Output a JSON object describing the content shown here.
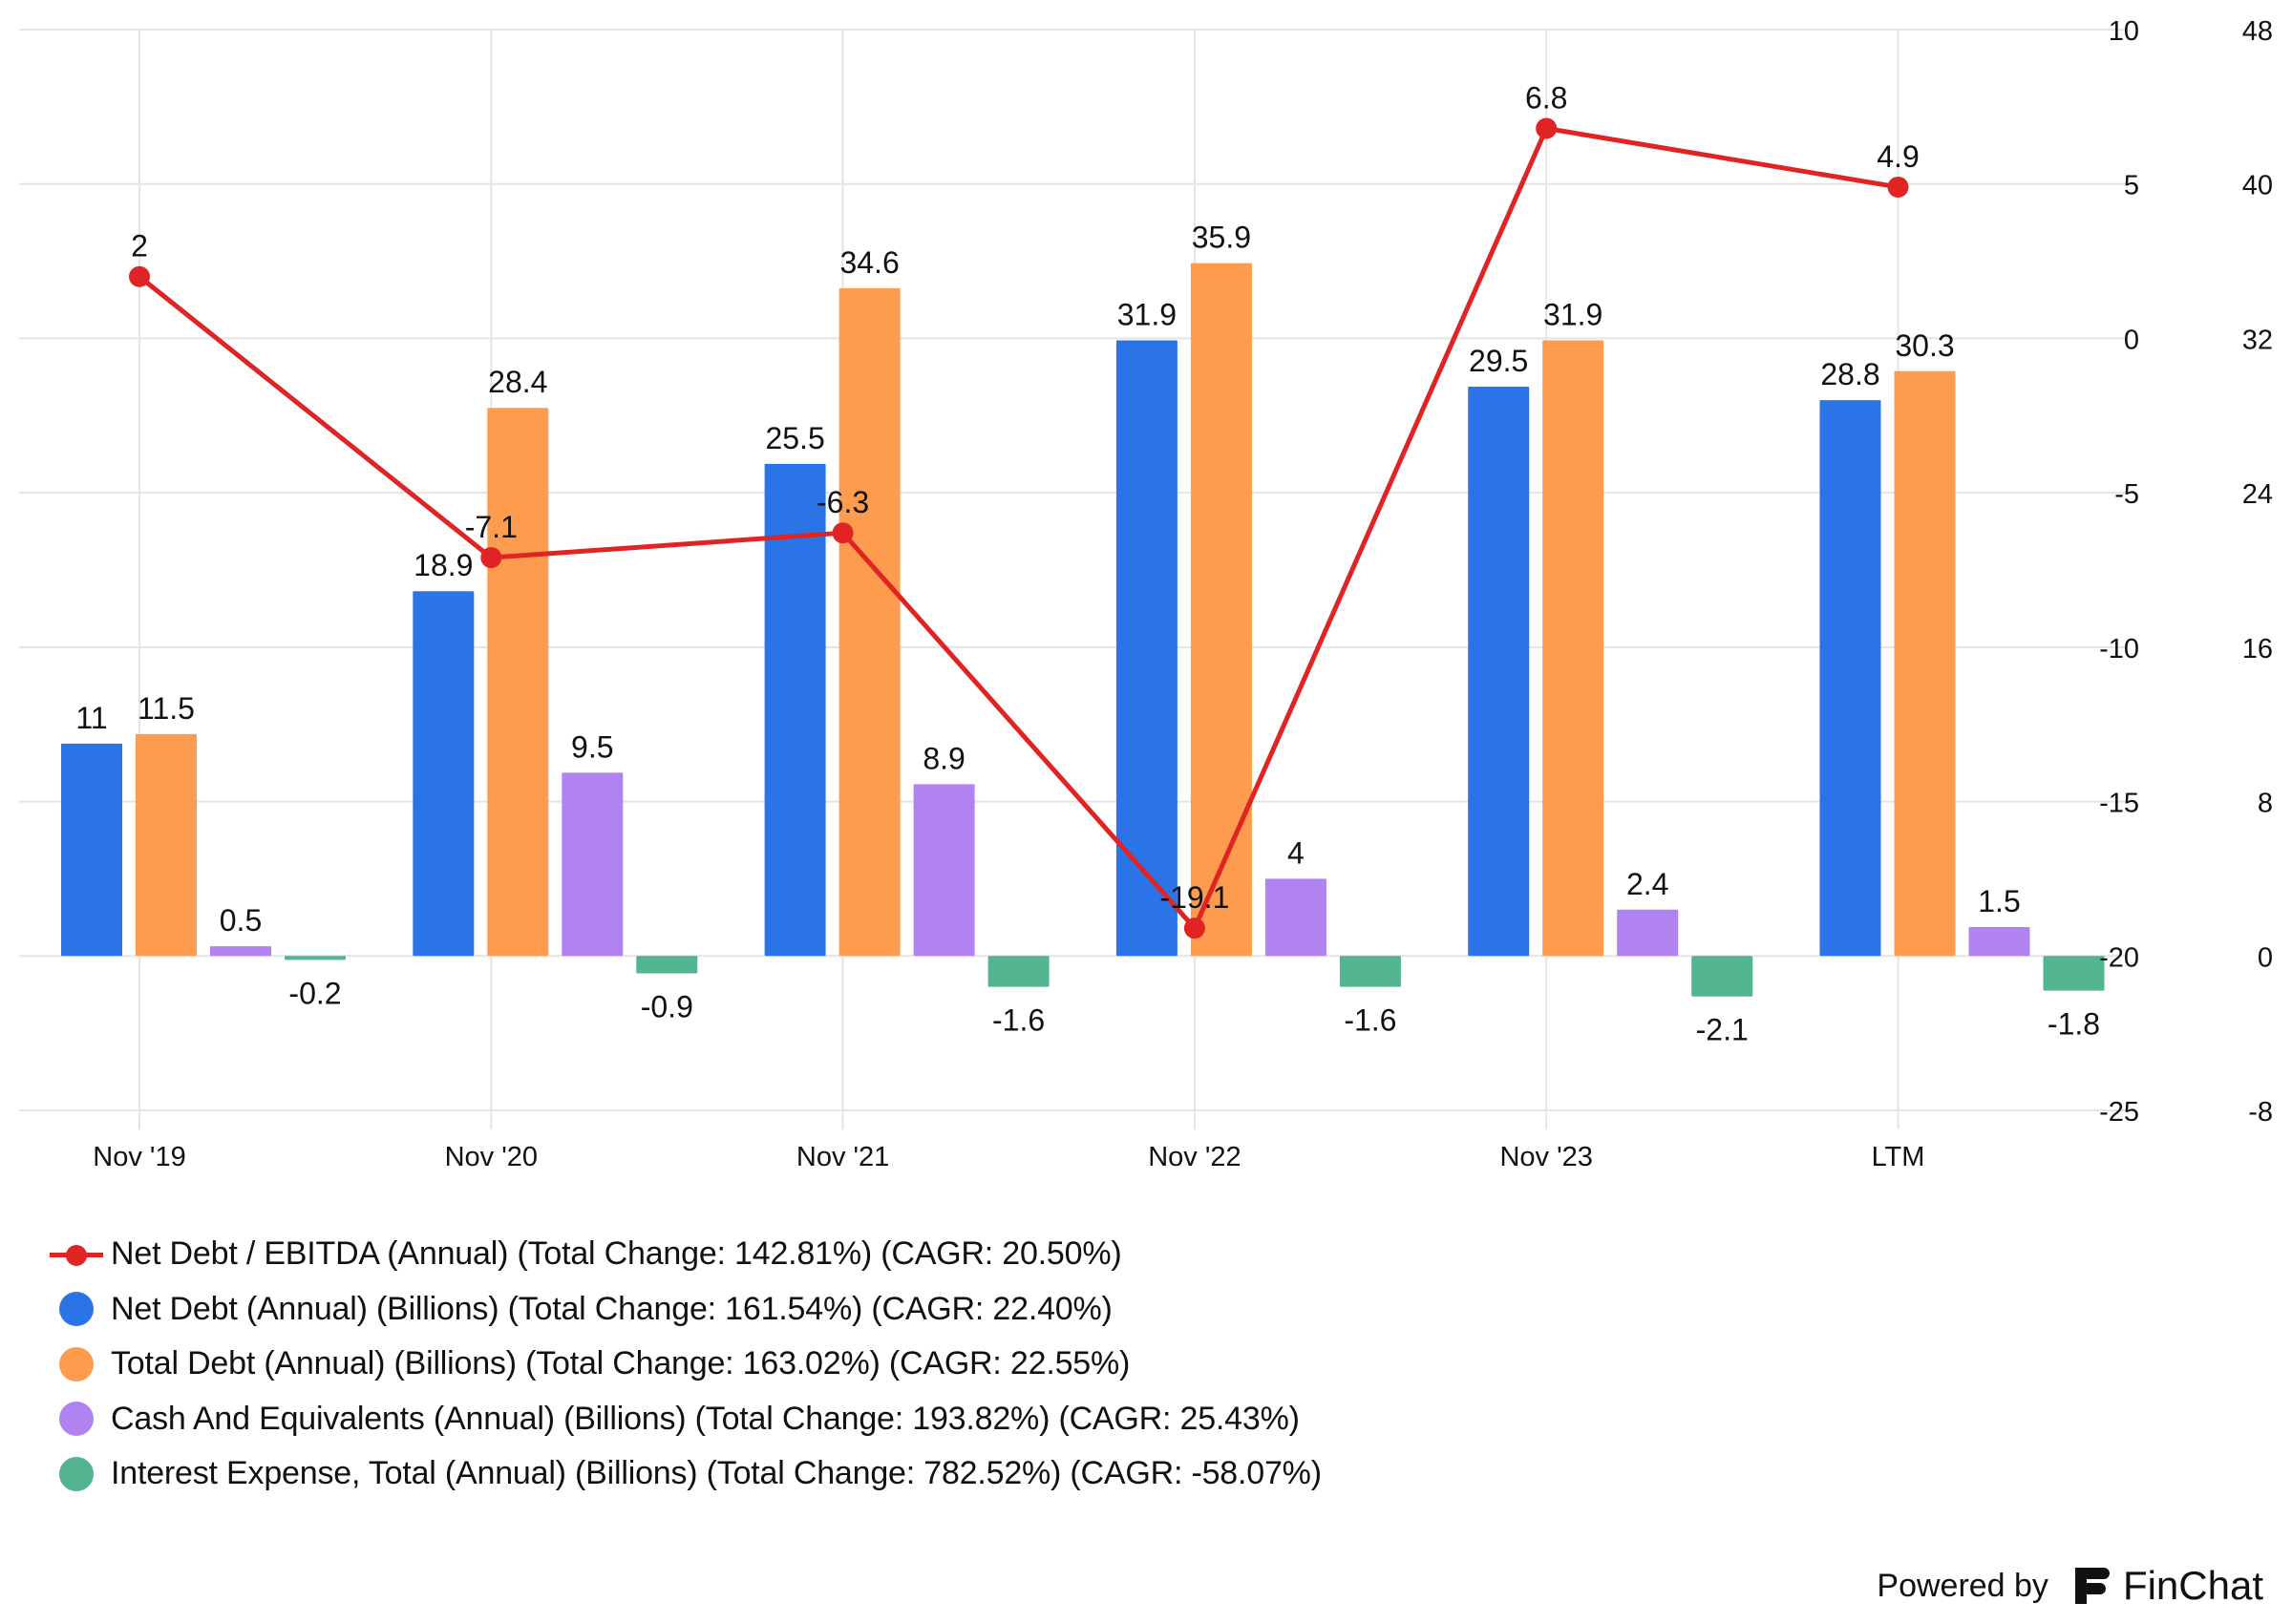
{
  "chart_data": {
    "type": "bar",
    "categories": [
      "Nov '19",
      "Nov '20",
      "Nov '21",
      "Nov '22",
      "Nov '23",
      "LTM"
    ],
    "series": [
      {
        "name": "Net Debt (Annual) (Billions) (Total Change: 161.54%) (CAGR: 22.40%)",
        "type": "bar",
        "axis": "right",
        "color": "#2a74e8",
        "values": [
          11,
          18.9,
          25.5,
          31.9,
          29.5,
          28.8
        ],
        "labels": [
          "11",
          "18.9",
          "25.5",
          "31.9",
          "29.5",
          "28.8"
        ]
      },
      {
        "name": "Total Debt (Annual) (Billions) (Total Change: 163.02%) (CAGR: 22.55%)",
        "type": "bar",
        "axis": "right",
        "color": "#fd9b4f",
        "values": [
          11.5,
          28.4,
          34.6,
          35.9,
          31.9,
          30.3
        ],
        "labels": [
          "11.5",
          "28.4",
          "34.6",
          "35.9",
          "31.9",
          "30.3"
        ]
      },
      {
        "name": "Cash And Equivalents (Annual) (Billions) (Total Change: 193.82%) (CAGR: 25.43%)",
        "type": "bar",
        "axis": "right",
        "color": "#b083f1",
        "values": [
          0.5,
          9.5,
          8.9,
          4,
          2.4,
          1.5
        ],
        "labels": [
          "0.5",
          "9.5",
          "8.9",
          "4",
          "2.4",
          "1.5"
        ]
      },
      {
        "name": "Interest Expense, Total (Annual) (Billions) (Total Change: 782.52%) (CAGR: -58.07%)",
        "type": "bar",
        "axis": "right",
        "color": "#53b58f",
        "values": [
          -0.2,
          -0.9,
          -1.6,
          -1.6,
          -2.1,
          -1.8
        ],
        "labels": [
          "-0.2",
          "-0.9",
          "-1.6",
          "-1.6",
          "-2.1",
          "-1.8"
        ]
      },
      {
        "name": "Net Debt / EBITDA (Annual) (Total Change: 142.81%) (CAGR: 20.50%)",
        "type": "line",
        "axis": "left",
        "color": "#e02424",
        "values": [
          2,
          -7.1,
          -6.3,
          -19.1,
          6.8,
          4.9
        ],
        "labels": [
          "2",
          "-7.1",
          "-6.3",
          "-19.1",
          "6.8",
          "4.9"
        ]
      }
    ],
    "axes": {
      "inner": {
        "min": -25,
        "max": 10,
        "ticks": [
          10,
          5,
          0,
          -5,
          -10,
          -15,
          -20,
          -25
        ],
        "labels": [
          "10",
          "5",
          "0",
          "-5",
          "-10",
          "-15",
          "-20",
          "-25"
        ]
      },
      "outer": {
        "min": -8,
        "max": 48,
        "ticks": [
          48,
          40,
          32,
          24,
          16,
          8,
          0,
          -8
        ],
        "labels": [
          "48",
          "40",
          "32",
          "24",
          "16",
          "8",
          "0",
          "-8"
        ]
      }
    },
    "grid": true,
    "legend_position": "bottom-left"
  },
  "legend": [
    {
      "label": "Net Debt / EBITDA (Annual) (Total Change: 142.81%) (CAGR: 20.50%)",
      "color": "#e02424",
      "kind": "line"
    },
    {
      "label": "Net Debt (Annual) (Billions) (Total Change: 161.54%) (CAGR: 22.40%)",
      "color": "#2a74e8",
      "kind": "dot"
    },
    {
      "label": "Total Debt (Annual) (Billions) (Total Change: 163.02%) (CAGR: 22.55%)",
      "color": "#fd9b4f",
      "kind": "dot"
    },
    {
      "label": "Cash And Equivalents (Annual) (Billions) (Total Change: 193.82%) (CAGR: 25.43%)",
      "color": "#b083f1",
      "kind": "dot"
    },
    {
      "label": "Interest Expense, Total (Annual) (Billions) (Total Change: 782.52%) (CAGR: -58.07%)",
      "color": "#53b58f",
      "kind": "dot"
    }
  ],
  "branding": {
    "powered_by": "Powered by",
    "name": "FinChat",
    "logo_icon": "finchat-logo-icon"
  }
}
